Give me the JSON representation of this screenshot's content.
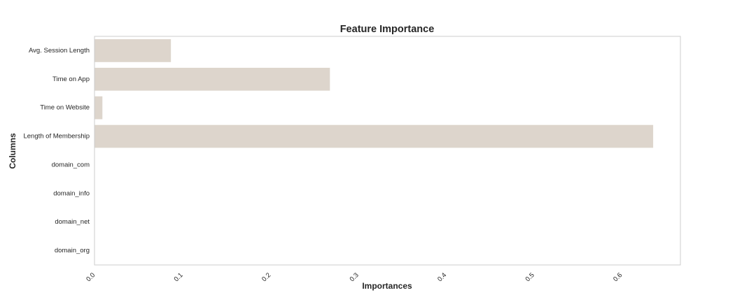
{
  "chart_data": {
    "type": "bar",
    "orientation": "horizontal",
    "title": "Feature Importance",
    "xlabel": "Importances",
    "ylabel": "Columns",
    "categories": [
      "Avg. Session Length",
      "Time on App",
      "Time on Website",
      "Length of Membership",
      "domain_com",
      "domain_info",
      "domain_net",
      "domain_org"
    ],
    "values": [
      0.087,
      0.268,
      0.009,
      0.636,
      0.0,
      0.0,
      0.0,
      0.0
    ],
    "xlim": [
      0.0,
      0.667
    ],
    "xticks": [
      "0.0",
      "0.1",
      "0.2",
      "0.3",
      "0.4",
      "0.5",
      "0.6"
    ],
    "grid": false,
    "bar_color": "#ddd5cc",
    "frame_color": "#cccccc"
  }
}
